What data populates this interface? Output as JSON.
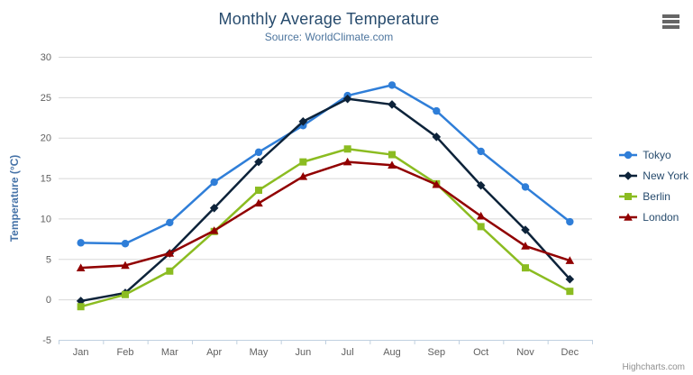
{
  "chart_data": {
    "type": "line",
    "title": "Monthly Average Temperature",
    "subtitle": "Source: WorldClimate.com",
    "xlabel": "",
    "ylabel": "Temperature (°C)",
    "categories": [
      "Jan",
      "Feb",
      "Mar",
      "Apr",
      "May",
      "Jun",
      "Jul",
      "Aug",
      "Sep",
      "Oct",
      "Nov",
      "Dec"
    ],
    "ylim": [
      -5,
      30
    ],
    "ytick_step": 5,
    "grid": true,
    "legend_position": "right",
    "series": [
      {
        "name": "Tokyo",
        "marker": "circle",
        "color": "#2f7ed8",
        "values": [
          7.0,
          6.9,
          9.5,
          14.5,
          18.2,
          21.5,
          25.2,
          26.5,
          23.3,
          18.3,
          13.9,
          9.6
        ]
      },
      {
        "name": "New York",
        "marker": "diamond",
        "color": "#0d233a",
        "values": [
          -0.2,
          0.8,
          5.7,
          11.3,
          17.0,
          22.0,
          24.8,
          24.1,
          20.1,
          14.1,
          8.6,
          2.5
        ]
      },
      {
        "name": "Berlin",
        "marker": "square",
        "color": "#8bbc21",
        "values": [
          -0.9,
          0.6,
          3.5,
          8.4,
          13.5,
          17.0,
          18.6,
          17.9,
          14.3,
          9.0,
          3.9,
          1.0
        ]
      },
      {
        "name": "London",
        "marker": "triangle",
        "color": "#910000",
        "values": [
          3.9,
          4.2,
          5.7,
          8.5,
          11.9,
          15.2,
          17.0,
          16.6,
          14.2,
          10.3,
          6.6,
          4.8
        ]
      }
    ]
  },
  "credits": {
    "label": "Highcharts.com"
  },
  "export_menu": {
    "icon": "hamburger-menu-icon"
  },
  "style": {
    "title_color": "#274b6d",
    "subtitle_color": "#4d759e",
    "axis_label_color": "#606060",
    "y_axis_title_color": "#4572a7",
    "legend_text_color": "#274b6d",
    "grid_color": "#d8d8d8",
    "axis_line_color": "#c0d0e0",
    "menu_icon_color": "#666666",
    "credits_color": "#909090"
  }
}
